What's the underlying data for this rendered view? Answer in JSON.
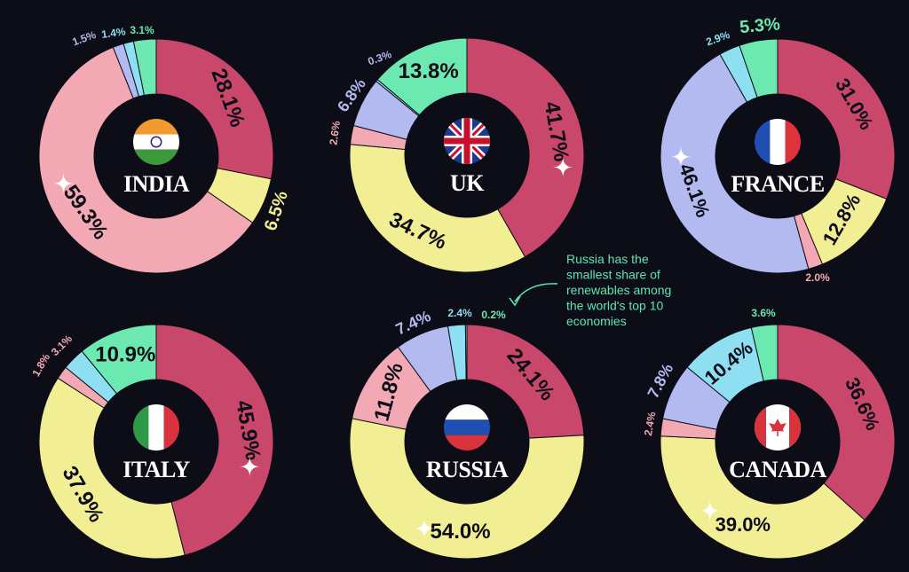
{
  "palette": {
    "fossil": "#c8476b",
    "nuclear": "#f2ee94",
    "hydro": "#f3a9b4",
    "wind_solar_bio": "#b3baf0",
    "geo": "#8edff2",
    "other": "#6ce9b0",
    "background": "#0c0d16",
    "star": "#ffffff"
  },
  "annotation": {
    "lines": [
      "Russia has the",
      "smallest share of",
      "renewables among",
      "the world's top 10",
      "economies"
    ],
    "color": "#5fe6b0"
  },
  "chart_data": [
    {
      "type": "pie",
      "country": "INDIA",
      "flag": "india-flag",
      "slices": [
        {
          "value": 28.1,
          "label": "28.1%",
          "color": "#c8476b"
        },
        {
          "value": 6.5,
          "label": "6.5%",
          "color": "#f2ee94",
          "starred": false
        },
        {
          "value": 59.3,
          "label": "59.3%",
          "color": "#f3a9b4",
          "starred": true
        },
        {
          "value": 1.5,
          "label": "1.5%",
          "color": "#b3baf0"
        },
        {
          "value": 1.4,
          "label": "1.4%",
          "color": "#8edff2"
        },
        {
          "value": 3.1,
          "label": "3.1%",
          "color": "#6ce9b0"
        }
      ]
    },
    {
      "type": "pie",
      "country": "UK",
      "flag": "uk-flag",
      "slices": [
        {
          "value": 41.7,
          "label": "41.7%",
          "color": "#c8476b",
          "starred": true
        },
        {
          "value": 34.7,
          "label": "34.7%",
          "color": "#f2ee94"
        },
        {
          "value": 2.6,
          "label": "2.6%",
          "color": "#f3a9b4"
        },
        {
          "value": 6.8,
          "label": "6.8%",
          "color": "#b3baf0"
        },
        {
          "value": 0.3,
          "label": "0.3%",
          "color": "#8edff2"
        },
        {
          "value": 13.8,
          "label": "13.8%",
          "color": "#6ce9b0"
        }
      ]
    },
    {
      "type": "pie",
      "country": "FRANCE",
      "flag": "france-flag",
      "slices": [
        {
          "value": 31.0,
          "label": "31.0%",
          "color": "#c8476b"
        },
        {
          "value": 12.8,
          "label": "12.8%",
          "color": "#f2ee94"
        },
        {
          "value": 2.0,
          "label": "2.0%",
          "color": "#f3a9b4"
        },
        {
          "value": 46.1,
          "label": "46.1%",
          "color": "#b3baf0",
          "starred": true
        },
        {
          "value": 2.9,
          "label": "2.9%",
          "color": "#8edff2"
        },
        {
          "value": 5.3,
          "label": "5.3%",
          "color": "#6ce9b0"
        }
      ]
    },
    {
      "type": "pie",
      "country": "ITALY",
      "flag": "italy-flag",
      "slices": [
        {
          "value": 45.9,
          "label": "45.9%",
          "color": "#c8476b",
          "starred": true
        },
        {
          "value": 37.9,
          "label": "37.9%",
          "color": "#f2ee94"
        },
        {
          "value": 1.8,
          "label": "1.8%",
          "color": "#f3a9b4"
        },
        {
          "value": 3.1,
          "label": "3.1%",
          "color": "#8edff2"
        },
        {
          "value": 10.9,
          "label": "10.9%",
          "color": "#6ce9b0"
        }
      ]
    },
    {
      "type": "pie",
      "country": "RUSSIA",
      "flag": "russia-flag",
      "slices": [
        {
          "value": 24.1,
          "label": "24.1%",
          "color": "#c8476b"
        },
        {
          "value": 54.0,
          "label": "54.0%",
          "color": "#f2ee94",
          "starred": true
        },
        {
          "value": 11.8,
          "label": "11.8%",
          "color": "#f3a9b4"
        },
        {
          "value": 7.4,
          "label": "7.4%",
          "color": "#b3baf0"
        },
        {
          "value": 2.4,
          "label": "2.4%",
          "color": "#8edff2"
        },
        {
          "value": 0.2,
          "label": "0.2%",
          "color": "#6ce9b0"
        }
      ]
    },
    {
      "type": "pie",
      "country": "CANADA",
      "flag": "canada-flag",
      "slices": [
        {
          "value": 36.6,
          "label": "36.6%",
          "color": "#c8476b"
        },
        {
          "value": 39.0,
          "label": "39.0%",
          "color": "#f2ee94",
          "starred": true
        },
        {
          "value": 2.4,
          "label": "2.4%",
          "color": "#f3a9b4"
        },
        {
          "value": 7.8,
          "label": "7.8%",
          "color": "#b3baf0"
        },
        {
          "value": 10.4,
          "label": "10.4%",
          "color": "#8edff2"
        },
        {
          "value": 3.6,
          "label": "3.6%",
          "color": "#6ce9b0"
        }
      ]
    }
  ]
}
